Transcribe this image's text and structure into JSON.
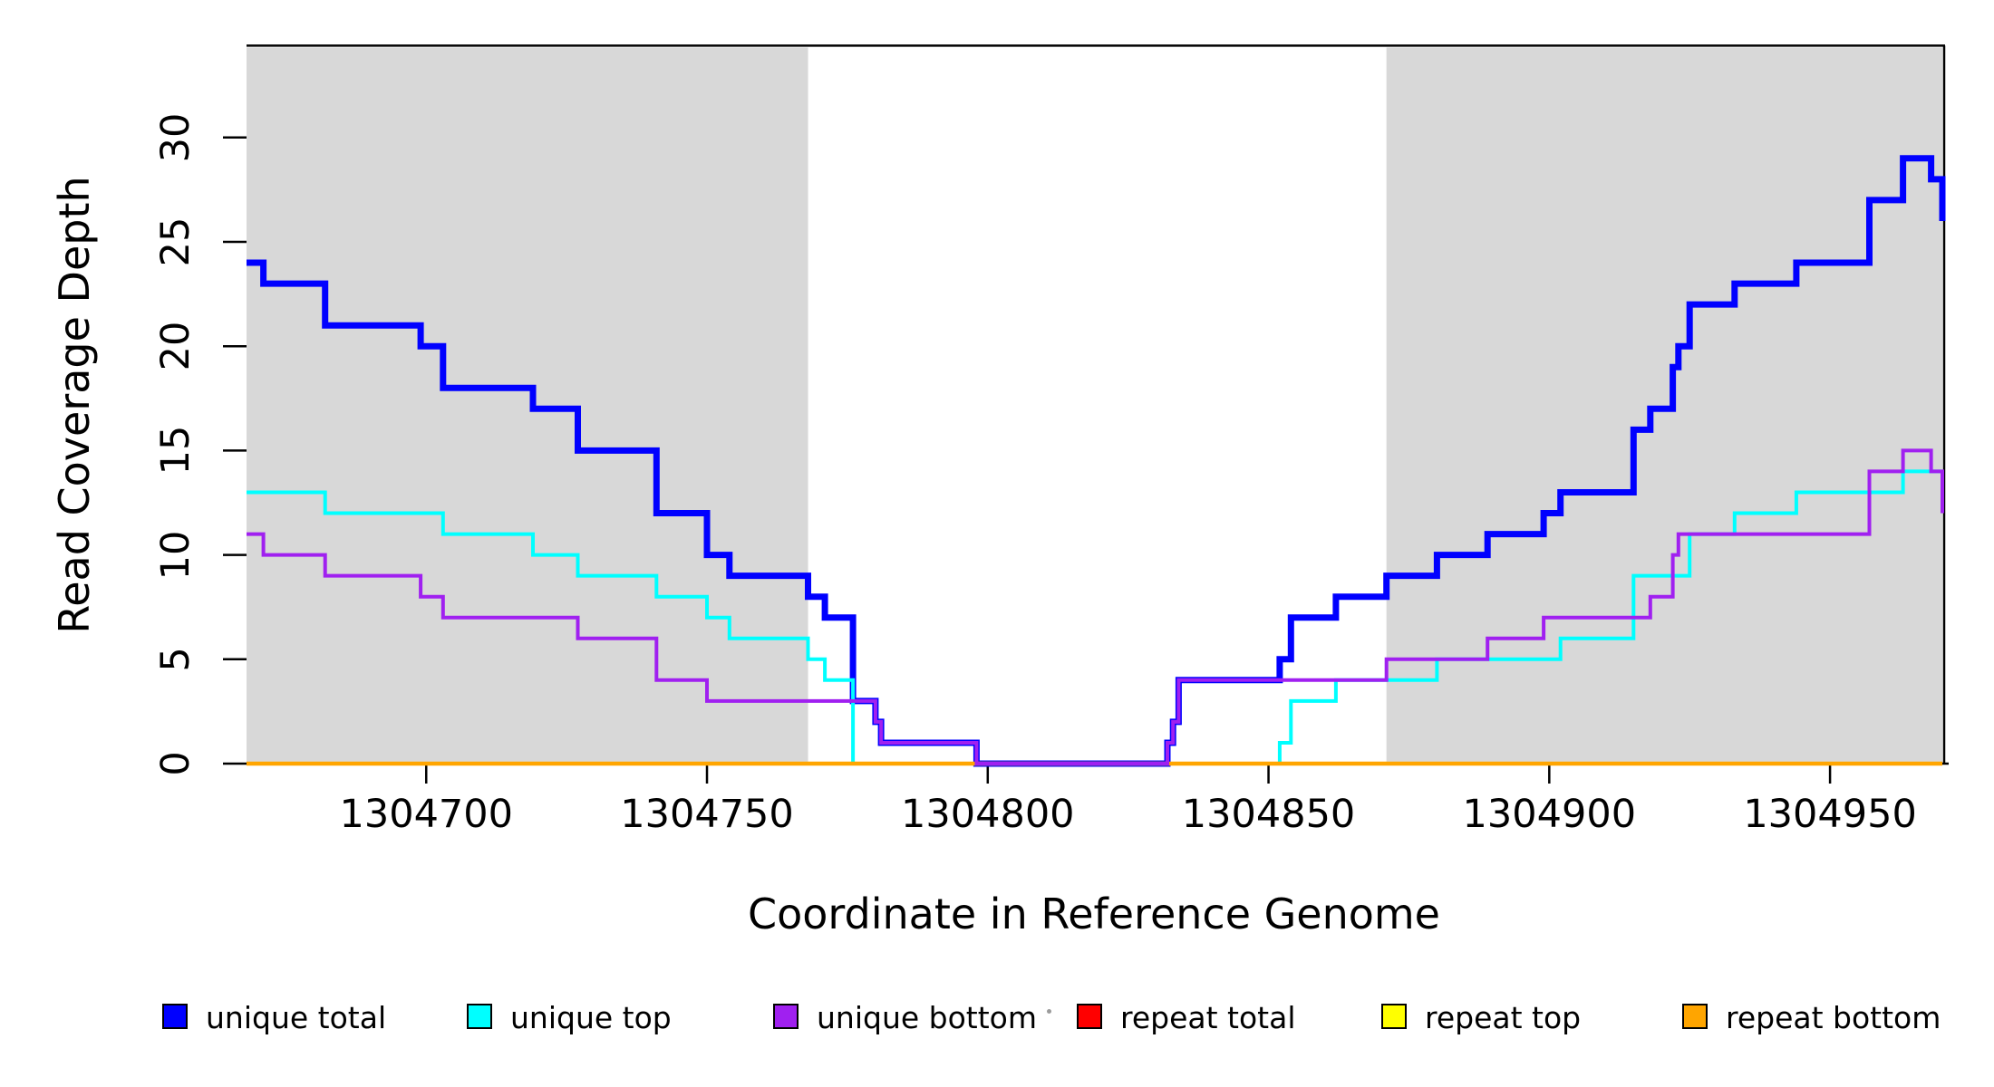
{
  "chart_data": {
    "type": "line",
    "subtype": "step",
    "title": "",
    "xlabel": "Coordinate in Reference Genome",
    "ylabel": "Read Coverage Depth",
    "xlim": [
      1304668,
      1304970
    ],
    "ylim": [
      0,
      34.4
    ],
    "xticks": [
      1304700,
      1304750,
      1304800,
      1304850,
      1304900,
      1304950
    ],
    "yticks": [
      0,
      5,
      10,
      15,
      20,
      25,
      30
    ],
    "grid": false,
    "legend_position": "bottom",
    "background_color": "#ffffff",
    "shaded_region_color": "#d8d8d8",
    "shaded_regions": [
      {
        "x0": 1304668,
        "x1": 1304768
      },
      {
        "x0": 1304871,
        "x1": 1304970
      }
    ],
    "series": [
      {
        "name": "unique total",
        "color": "#0000ff",
        "line_width": 7,
        "points": [
          [
            1304668,
            24
          ],
          [
            1304671,
            23
          ],
          [
            1304682,
            21
          ],
          [
            1304699,
            20
          ],
          [
            1304703,
            18
          ],
          [
            1304719,
            17
          ],
          [
            1304727,
            15
          ],
          [
            1304741,
            12
          ],
          [
            1304750,
            10
          ],
          [
            1304754,
            9
          ],
          [
            1304768,
            8
          ],
          [
            1304771,
            7
          ],
          [
            1304776,
            3
          ],
          [
            1304780,
            2
          ],
          [
            1304781,
            1
          ],
          [
            1304798,
            0
          ],
          [
            1304832,
            1
          ],
          [
            1304833,
            2
          ],
          [
            1304834,
            4
          ],
          [
            1304852,
            5
          ],
          [
            1304854,
            7
          ],
          [
            1304862,
            8
          ],
          [
            1304871,
            9
          ],
          [
            1304880,
            10
          ],
          [
            1304889,
            11
          ],
          [
            1304899,
            12
          ],
          [
            1304902,
            13
          ],
          [
            1304915,
            16
          ],
          [
            1304918,
            17
          ],
          [
            1304922,
            19
          ],
          [
            1304923,
            20
          ],
          [
            1304925,
            22
          ],
          [
            1304933,
            23
          ],
          [
            1304944,
            24
          ],
          [
            1304957,
            27
          ],
          [
            1304963,
            29
          ],
          [
            1304968,
            28
          ],
          [
            1304970,
            26
          ]
        ]
      },
      {
        "name": "unique top",
        "color": "#00ffff",
        "line_width": 4,
        "points": [
          [
            1304668,
            13
          ],
          [
            1304682,
            12
          ],
          [
            1304703,
            11
          ],
          [
            1304719,
            10
          ],
          [
            1304727,
            9
          ],
          [
            1304741,
            8
          ],
          [
            1304750,
            7
          ],
          [
            1304754,
            6
          ],
          [
            1304768,
            5
          ],
          [
            1304771,
            4
          ],
          [
            1304776,
            0
          ],
          [
            1304852,
            1
          ],
          [
            1304854,
            3
          ],
          [
            1304862,
            4
          ],
          [
            1304880,
            5
          ],
          [
            1304902,
            6
          ],
          [
            1304915,
            9
          ],
          [
            1304925,
            11
          ],
          [
            1304933,
            12
          ],
          [
            1304944,
            13
          ],
          [
            1304963,
            14
          ]
        ]
      },
      {
        "name": "unique bottom",
        "color": "#a020f0",
        "line_width": 4,
        "points": [
          [
            1304668,
            11
          ],
          [
            1304671,
            10
          ],
          [
            1304682,
            9
          ],
          [
            1304699,
            8
          ],
          [
            1304703,
            7
          ],
          [
            1304727,
            6
          ],
          [
            1304741,
            4
          ],
          [
            1304750,
            3
          ],
          [
            1304780,
            2
          ],
          [
            1304781,
            1
          ],
          [
            1304798,
            0
          ],
          [
            1304832,
            1
          ],
          [
            1304833,
            2
          ],
          [
            1304834,
            4
          ],
          [
            1304871,
            5
          ],
          [
            1304889,
            6
          ],
          [
            1304899,
            7
          ],
          [
            1304918,
            8
          ],
          [
            1304922,
            10
          ],
          [
            1304923,
            11
          ],
          [
            1304957,
            14
          ],
          [
            1304963,
            15
          ],
          [
            1304968,
            14
          ],
          [
            1304970,
            12
          ]
        ]
      },
      {
        "name": "repeat total",
        "color": "#ff0000",
        "line_width": 4,
        "points": [
          [
            1304668,
            0
          ]
        ]
      },
      {
        "name": "repeat top",
        "color": "#ffff00",
        "line_width": 4,
        "points": [
          [
            1304668,
            0
          ]
        ]
      },
      {
        "name": "repeat bottom",
        "color": "#ffa500",
        "line_width": 4.5,
        "points": [
          [
            1304668,
            0
          ]
        ]
      }
    ],
    "draw_order": [
      "unique total",
      "unique top",
      "repeat total",
      "repeat top",
      "repeat bottom",
      "unique bottom"
    ]
  },
  "legend": {
    "items": [
      {
        "label": "unique total",
        "color": "#0000ff"
      },
      {
        "label": "unique top",
        "color": "#00ffff"
      },
      {
        "label": "unique bottom",
        "color": "#a020f0"
      },
      {
        "label": "repeat total",
        "color": "#ff0000"
      },
      {
        "label": "repeat top",
        "color": "#ffff00"
      },
      {
        "label": "repeat bottom",
        "color": "#ffa500"
      }
    ]
  }
}
